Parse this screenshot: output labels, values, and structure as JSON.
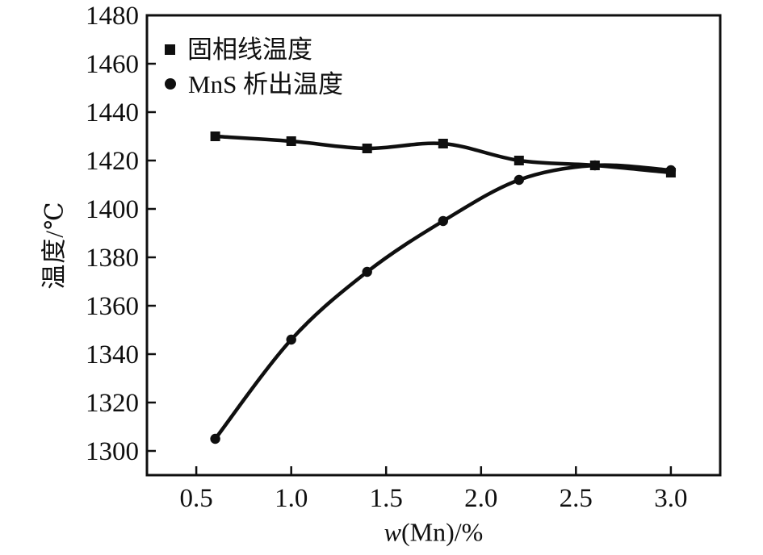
{
  "figure": {
    "background": "#ffffff",
    "axis_color": "#0f0f0f"
  },
  "chart_data": {
    "type": "line",
    "title": "",
    "x": [
      0.6,
      1.0,
      1.4,
      1.8,
      2.2,
      2.6,
      3.0
    ],
    "series": [
      {
        "name": "固相线温度",
        "marker": "square",
        "color": "#0f0f0f",
        "values": [
          1430,
          1428,
          1425,
          1427,
          1420,
          1418,
          1415
        ]
      },
      {
        "name": "MnS 析出温度",
        "marker": "circle",
        "color": "#0f0f0f",
        "values": [
          1305,
          1346,
          1374,
          1395,
          1412,
          1418,
          1416
        ]
      }
    ],
    "xlabel_italic": "w",
    "xlabel_rest": "(Mn)/%",
    "ylabel": "温度/℃",
    "xlim": [
      0.24,
      3.26
    ],
    "ylim": [
      1290,
      1480
    ],
    "xticks": [
      0.5,
      1.0,
      1.5,
      2.0,
      2.5,
      3.0
    ],
    "xtick_labels": [
      "0.5",
      "1.0",
      "1.5",
      "2.0",
      "2.5",
      "3.0"
    ],
    "yticks": [
      1300,
      1320,
      1340,
      1360,
      1380,
      1400,
      1420,
      1440,
      1460,
      1480
    ],
    "ytick_labels": [
      "1300",
      "1320",
      "1340",
      "1360",
      "1380",
      "1400",
      "1420",
      "1440",
      "1460",
      "1480"
    ],
    "legend_position": "top-left",
    "grid": false
  }
}
